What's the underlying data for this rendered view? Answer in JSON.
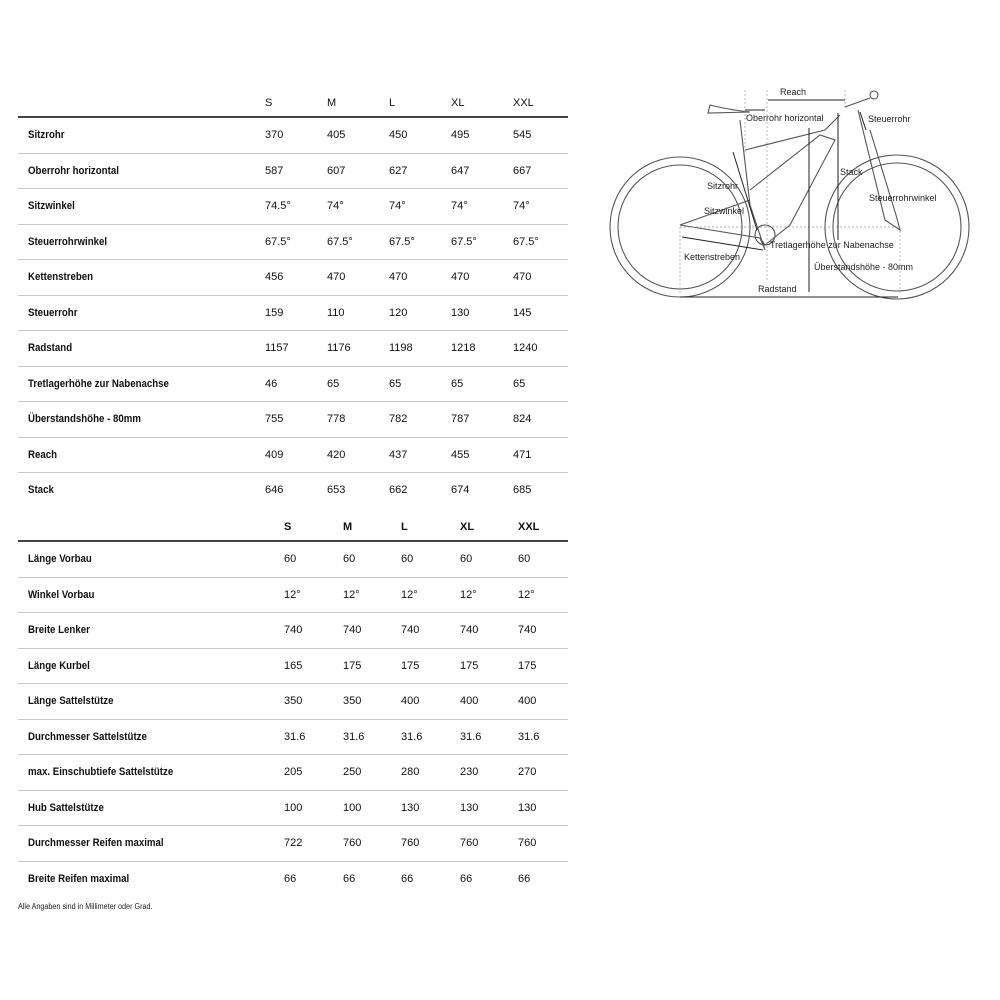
{
  "geometry_table": {
    "sizes": [
      "S",
      "M",
      "L",
      "XL",
      "XXL"
    ],
    "rows": [
      {
        "label": "Sitzrohr",
        "values": [
          "370",
          "405",
          "450",
          "495",
          "545"
        ]
      },
      {
        "label": "Oberrohr horizontal",
        "values": [
          "587",
          "607",
          "627",
          "647",
          "667"
        ]
      },
      {
        "label": "Sitzwinkel",
        "values": [
          "74.5°",
          "74°",
          "74°",
          "74°",
          "74°"
        ]
      },
      {
        "label": "Steuerrohrwinkel",
        "values": [
          "67.5°",
          "67.5°",
          "67.5°",
          "67.5°",
          "67.5°"
        ]
      },
      {
        "label": "Kettenstreben",
        "values": [
          "456",
          "470",
          "470",
          "470",
          "470"
        ]
      },
      {
        "label": "Steuerrohr",
        "values": [
          "159",
          "110",
          "120",
          "130",
          "145"
        ]
      },
      {
        "label": "Radstand",
        "values": [
          "1157",
          "1176",
          "1198",
          "1218",
          "1240"
        ]
      },
      {
        "label": "Tretlagerhöhe zur Nabenachse",
        "values": [
          "46",
          "65",
          "65",
          "65",
          "65"
        ]
      },
      {
        "label": "Überstandshöhe - 80mm",
        "values": [
          "755",
          "778",
          "782",
          "787",
          "824"
        ]
      },
      {
        "label": "Reach",
        "values": [
          "409",
          "420",
          "437",
          "455",
          "471"
        ]
      },
      {
        "label": "Stack",
        "values": [
          "646",
          "653",
          "662",
          "674",
          "685"
        ]
      }
    ]
  },
  "components_table": {
    "sizes": [
      "S",
      "M",
      "L",
      "XL",
      "XXL"
    ],
    "rows": [
      {
        "label": "Länge Vorbau",
        "values": [
          "60",
          "60",
          "60",
          "60",
          "60"
        ]
      },
      {
        "label": "Winkel Vorbau",
        "values": [
          "12°",
          "12°",
          "12°",
          "12°",
          "12°"
        ]
      },
      {
        "label": "Breite Lenker",
        "values": [
          "740",
          "740",
          "740",
          "740",
          "740"
        ]
      },
      {
        "label": "Länge Kurbel",
        "values": [
          "165",
          "175",
          "175",
          "175",
          "175"
        ]
      },
      {
        "label": "Länge Sattelstütze",
        "values": [
          "350",
          "350",
          "400",
          "400",
          "400"
        ]
      },
      {
        "label": "Durchmesser Sattelstütze",
        "values": [
          "31.6",
          "31.6",
          "31.6",
          "31.6",
          "31.6"
        ]
      },
      {
        "label": "max. Einschubtiefe Sattelstütze",
        "values": [
          "205",
          "250",
          "280",
          "230",
          "270"
        ]
      },
      {
        "label": "Hub Sattelstütze",
        "values": [
          "100",
          "100",
          "130",
          "130",
          "130"
        ]
      },
      {
        "label": "Durchmesser Reifen maximal",
        "values": [
          "722",
          "760",
          "760",
          "760",
          "760"
        ]
      },
      {
        "label": "Breite Reifen maximal",
        "values": [
          "66",
          "66",
          "66",
          "66",
          "66"
        ]
      }
    ]
  },
  "footnote": "Alle Angaben sind in Millimeter oder Grad.",
  "diagram": {
    "labels": {
      "reach": "Reach",
      "oberrohr": "Oberrohr horizontal",
      "steuerrohr": "Steuerrohr",
      "stack": "Stack",
      "sitzrohr": "Sitzrohr",
      "sitzwinkel": "Sitzwinkel",
      "steuerrohrwinkel": "Steuerrohrwinkel",
      "tretlager": "Tretlagerhöhe zur Nabenachse",
      "kettenstreben": "Kettenstreben",
      "ueberstand": "Überstandshöhe - 80mm",
      "radstand": "Radstand"
    }
  }
}
